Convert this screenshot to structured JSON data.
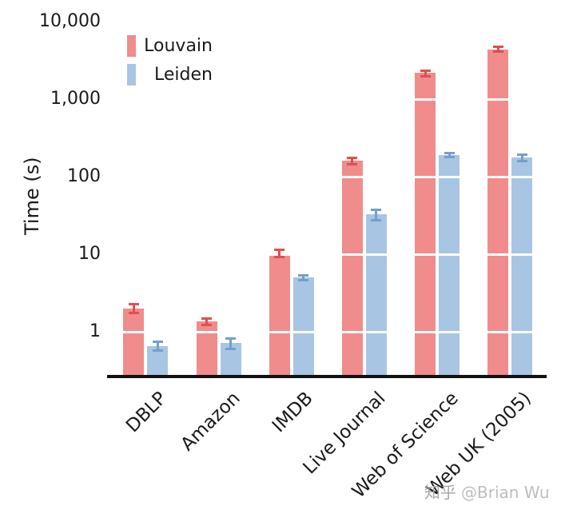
{
  "chart_data": {
    "type": "bar",
    "title": "",
    "xlabel": "",
    "ylabel": "Time (s)",
    "yscale": "log",
    "ylim": [
      0.28,
      10000
    ],
    "grid": "white horizontal lines at decades drawn over bars",
    "legend_position": "upper-left",
    "yticks": [
      {
        "label": "10,000",
        "value": 10000
      },
      {
        "label": "1,000",
        "value": 1000
      },
      {
        "label": "100",
        "value": 100
      },
      {
        "label": "10",
        "value": 10
      },
      {
        "label": "1",
        "value": 1
      }
    ],
    "categories": [
      "DBLP",
      "Amazon",
      "IMDB",
      "Live Journal",
      "Web of Science",
      "Web UK (2005)"
    ],
    "series": [
      {
        "name": "Louvain",
        "color": "#f08c8c",
        "error_color": "#e04f4f",
        "values": [
          2.0,
          1.35,
          10.3,
          160,
          2170,
          4400
        ],
        "errors": [
          0.25,
          0.14,
          1.0,
          16,
          180,
          280
        ]
      },
      {
        "name": "Leiden",
        "color": "#a8c5e4",
        "error_color": "#739fcc",
        "values": [
          0.66,
          0.71,
          5.0,
          32.5,
          190,
          175
        ],
        "errors": [
          0.09,
          0.11,
          0.35,
          5,
          10,
          15
        ]
      }
    ]
  },
  "watermark": {
    "site": "知乎",
    "author": "@Brian Wu"
  }
}
